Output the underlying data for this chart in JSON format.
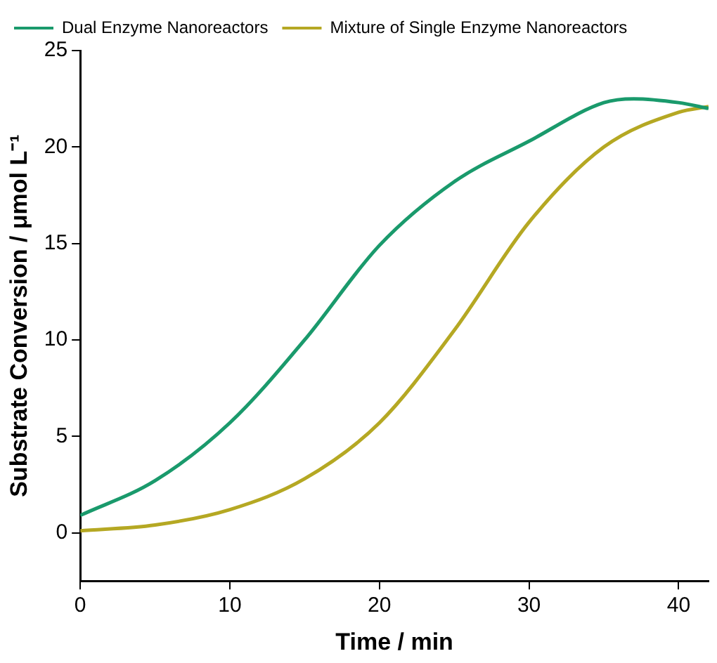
{
  "chart_data": {
    "type": "line",
    "xlabel": "Time / min",
    "ylabel": "Substrate Conversion / μmol L⁻¹",
    "xlim": [
      0,
      42
    ],
    "xticks": [
      0,
      10,
      20,
      30,
      40
    ],
    "ylim": [
      -2.5,
      25
    ],
    "yticks": [
      0,
      5,
      10,
      15,
      20,
      25
    ],
    "grid": false,
    "legend": "top left",
    "marker": "none",
    "line_style": "solid",
    "series": [
      {
        "name": "Dual Enzyme Nanoreactors",
        "color": "#1a9a6c",
        "x": [
          0,
          5,
          10,
          15,
          20,
          25,
          30,
          35,
          37,
          40,
          42
        ],
        "values": [
          0.9,
          2.7,
          5.7,
          10,
          14.9,
          18.2,
          20.3,
          22.3,
          22.5,
          22.3,
          22.0
        ]
      },
      {
        "name": "Mixture of Single Enzyme Nanoreactors",
        "color": "#b5a823",
        "x": [
          0,
          5,
          10,
          15,
          20,
          25,
          30,
          35,
          40,
          42
        ],
        "values": [
          0.1,
          0.4,
          1.2,
          2.8,
          5.7,
          10.5,
          16.1,
          20,
          21.8,
          22.1
        ]
      }
    ]
  }
}
